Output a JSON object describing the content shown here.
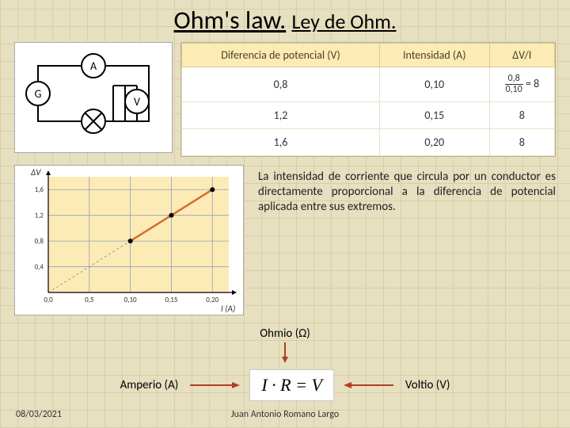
{
  "title_main": "Ohm's law.",
  "title_sub": "Ley de Ohm.",
  "table": {
    "headers": [
      "Diferencia de potencial (V)",
      "Intensidad (A)",
      "ΔV/I"
    ],
    "rows": [
      [
        "0,8",
        "0,10",
        "frac"
      ],
      [
        "1,2",
        "0,15",
        "8"
      ],
      [
        "1,6",
        "0,20",
        "8"
      ]
    ],
    "frac_top": "0,8",
    "frac_bot": "0,10",
    "frac_eq": "= 8",
    "header_bg": "#fdebb6",
    "border": "#d4c998"
  },
  "circuit": {
    "labels": {
      "ammeter": "A",
      "generator": "G",
      "voltmeter": "V"
    },
    "stroke": "#000000"
  },
  "plot": {
    "yaxis_label": "ΔV",
    "xaxis_label": "I (A)",
    "xticks": [
      "0,0",
      "0,5",
      "0,10",
      "0,15",
      "0,20"
    ],
    "yticks": [
      "0,4",
      "0,8",
      "1,2",
      "1,6"
    ],
    "points_x": [
      0.1,
      0.15,
      0.2
    ],
    "points_y": [
      0.8,
      1.2,
      1.6
    ],
    "xlim": [
      0,
      0.22
    ],
    "ylim": [
      0,
      1.8
    ],
    "line_color": "#d86a2e",
    "point_color": "#000000",
    "grid_color": "#8aa0c0",
    "bg_color": "#fdebb6",
    "dashed_color": "#999999",
    "tick_fontsize": 9
  },
  "description": "La intensidad de corriente que circula por un conductor es directamente proporcional a la diferencia de potencial aplicada entre sus extremos.",
  "ohmio_label": "Ohmio (Ω)",
  "amperio_label": "Amperio (A)",
  "voltio_label": "Voltio (V)",
  "formula": "I · R = V",
  "footer_date": "08/03/2021",
  "footer_author": "Juan Antonio Romano Largo",
  "arrow_color": "#b04020"
}
